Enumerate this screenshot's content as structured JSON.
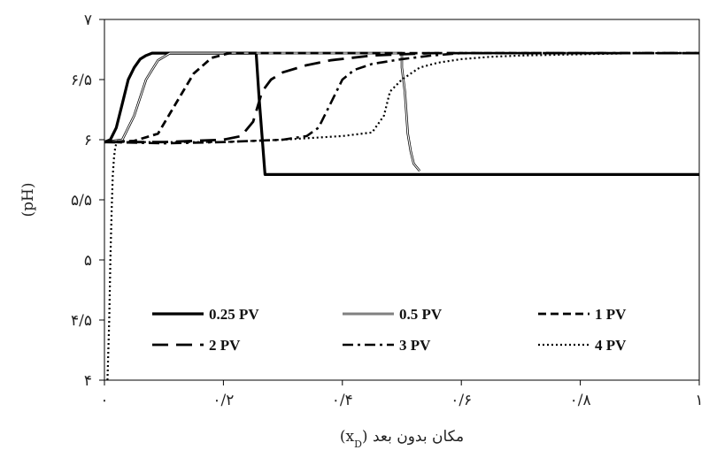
{
  "chart_data": {
    "type": "line",
    "xlabel": "مکان بدون بعد (xD)",
    "ylabel": "(pH)",
    "xlim": [
      0,
      1
    ],
    "ylim": [
      4,
      7
    ],
    "grid": false,
    "legend_position": "lower-center",
    "x_ticks": [
      {
        "value": 0,
        "label": "۰"
      },
      {
        "value": 0.2,
        "label": "۰/۲"
      },
      {
        "value": 0.4,
        "label": "۰/۴"
      },
      {
        "value": 0.6,
        "label": "۰/۶"
      },
      {
        "value": 0.8,
        "label": "۰/۸"
      },
      {
        "value": 1,
        "label": "۱"
      }
    ],
    "y_ticks": [
      {
        "value": 4,
        "label": "۴"
      },
      {
        "value": 4.5,
        "label": "۴/۵"
      },
      {
        "value": 5,
        "label": "۵"
      },
      {
        "value": 5.5,
        "label": "۵/۵"
      },
      {
        "value": 6,
        "label": "۶"
      },
      {
        "value": 6.5,
        "label": "۶/۵"
      },
      {
        "value": 7,
        "label": "۷"
      }
    ],
    "series": [
      {
        "name": "0.25 PV",
        "style": "solid",
        "color": "#000000",
        "x": [
          0.0,
          0.01,
          0.02,
          0.03,
          0.04,
          0.05,
          0.06,
          0.07,
          0.08,
          0.1,
          0.15,
          0.2,
          0.25,
          0.255,
          0.26,
          0.27,
          0.3,
          0.5,
          0.7,
          1.0
        ],
        "y": [
          5.98,
          6.0,
          6.1,
          6.3,
          6.5,
          6.6,
          6.67,
          6.7,
          6.72,
          6.72,
          6.72,
          6.72,
          6.72,
          6.72,
          6.35,
          5.71,
          5.71,
          5.71,
          5.71,
          5.71
        ]
      },
      {
        "name": "0.5 PV",
        "style": "double",
        "color": "#000000",
        "x": [
          0.0,
          0.03,
          0.05,
          0.07,
          0.09,
          0.11,
          0.13,
          0.2,
          0.4,
          0.5,
          0.5,
          0.505,
          0.51,
          0.515,
          0.52,
          0.53
        ],
        "y": [
          5.98,
          6.0,
          6.2,
          6.5,
          6.66,
          6.72,
          6.72,
          6.72,
          6.72,
          6.72,
          6.6,
          6.4,
          6.05,
          5.9,
          5.8,
          5.74
        ]
      },
      {
        "name": "1 PV",
        "style": "dash",
        "color": "#000000",
        "x": [
          0.0,
          0.05,
          0.09,
          0.12,
          0.15,
          0.18,
          0.21,
          0.25,
          0.3,
          0.5,
          0.8,
          1.0
        ],
        "y": [
          5.98,
          5.99,
          6.05,
          6.3,
          6.55,
          6.68,
          6.72,
          6.72,
          6.72,
          6.72,
          6.72,
          6.72
        ]
      },
      {
        "name": "2 PV",
        "style": "longdash",
        "color": "#000000",
        "x": [
          0.0,
          0.1,
          0.2,
          0.23,
          0.25,
          0.265,
          0.28,
          0.3,
          0.34,
          0.38,
          0.45,
          0.5,
          0.55,
          0.7,
          1.0
        ],
        "y": [
          5.98,
          5.98,
          6.0,
          6.03,
          6.15,
          6.4,
          6.5,
          6.56,
          6.62,
          6.66,
          6.7,
          6.71,
          6.72,
          6.72,
          6.72
        ]
      },
      {
        "name": "3 PV",
        "style": "dashdot",
        "color": "#000000",
        "x": [
          0.0,
          0.1,
          0.2,
          0.3,
          0.34,
          0.36,
          0.38,
          0.4,
          0.42,
          0.45,
          0.5,
          0.55,
          0.6,
          0.8,
          1.0
        ],
        "y": [
          5.98,
          5.97,
          5.98,
          6.0,
          6.03,
          6.1,
          6.3,
          6.5,
          6.58,
          6.63,
          6.67,
          6.7,
          6.72,
          6.72,
          6.72
        ]
      },
      {
        "name": "4 PV",
        "style": "dot",
        "color": "#000000",
        "x": [
          0.005,
          0.008,
          0.01,
          0.012,
          0.014,
          0.016,
          0.018,
          0.02,
          0.025,
          0.03,
          0.1,
          0.2,
          0.3,
          0.4,
          0.45,
          0.47,
          0.48,
          0.5,
          0.53,
          0.56,
          0.6,
          0.65,
          0.7,
          0.8,
          0.9,
          1.0
        ],
        "y": [
          4.0,
          4.5,
          5.0,
          5.4,
          5.7,
          5.85,
          5.93,
          5.97,
          5.98,
          5.98,
          5.98,
          5.98,
          6.0,
          6.03,
          6.06,
          6.2,
          6.4,
          6.5,
          6.6,
          6.64,
          6.67,
          6.69,
          6.7,
          6.71,
          6.72,
          6.72
        ]
      }
    ]
  }
}
